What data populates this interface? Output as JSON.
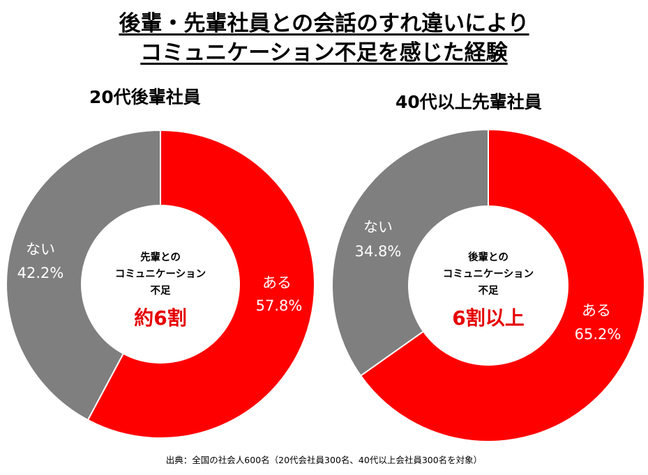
{
  "title": {
    "line1": "後輩・先輩社員との会話のすれ違いにより",
    "line2": "コミュニケーション不足を感じた経験"
  },
  "chart_data": [
    {
      "type": "pie",
      "subtitle": "20代後輩社員",
      "slices": [
        {
          "label": "ある",
          "value": 57.8,
          "value_text": "57.8%",
          "color": "#ff0000"
        },
        {
          "label": "ない",
          "value": 42.2,
          "value_text": "42.2%",
          "color": "#7f7f7f"
        }
      ],
      "center": {
        "lines": [
          "先輩との",
          "コミュニケーション",
          "不足"
        ],
        "highlight": "約6割",
        "highlight_color": "#e60000"
      }
    },
    {
      "type": "pie",
      "subtitle": "40代以上先輩社員",
      "slices": [
        {
          "label": "ある",
          "value": 65.2,
          "value_text": "65.2%",
          "color": "#ff0000"
        },
        {
          "label": "ない",
          "value": 34.8,
          "value_text": "34.8%",
          "color": "#7f7f7f"
        }
      ],
      "center": {
        "lines": [
          "後輩との",
          "コミュニケーション",
          "不足"
        ],
        "highlight": "6割以上",
        "highlight_color": "#e60000"
      }
    }
  ],
  "source": "出典：全国の社会人600名（20代会社員300名、40代以上会社員300名を対象）"
}
